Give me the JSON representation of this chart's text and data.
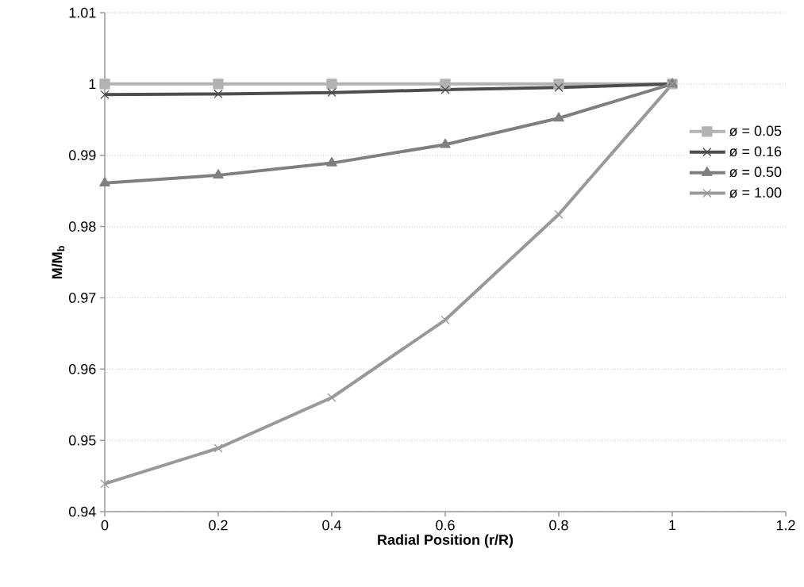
{
  "chart_data": {
    "type": "line",
    "xlabel": "Radial Position (r/R)",
    "ylabel": "M/M$_{b}$",
    "x": [
      0,
      0.2,
      0.4,
      0.6,
      0.8,
      1
    ],
    "series": [
      {
        "name": "ø = 0.05",
        "color": "#b2b2b2",
        "marker": "square",
        "values": [
          1,
          1,
          1,
          1,
          1,
          1
        ]
      },
      {
        "name": "ø = 0.16",
        "color": "#4d4d4d",
        "marker": "cross",
        "values": [
          0.9985,
          0.9986,
          0.9988,
          0.9992,
          0.9995,
          1
        ]
      },
      {
        "name": "ø = 0.50",
        "color": "#7f7f7f",
        "marker": "triangle",
        "values": [
          0.9861,
          0.9872,
          0.9889,
          0.9915,
          0.9952,
          1
        ]
      },
      {
        "name": "ø = 1.00",
        "color": "#999999",
        "marker": "cross",
        "values": [
          0.9439,
          0.9489,
          0.956,
          0.9669,
          0.9817,
          1
        ]
      }
    ],
    "xlim": [
      0,
      1.2
    ],
    "xticks": [
      0,
      0.2,
      0.4,
      0.6,
      0.8,
      1,
      1.2
    ],
    "ylim": [
      0.94,
      1.01
    ],
    "yticks": [
      0.94,
      0.95,
      0.96,
      0.97,
      0.98,
      0.99,
      1,
      1.01
    ],
    "grid": "y",
    "legend": "right",
    "line_style": "solid"
  }
}
